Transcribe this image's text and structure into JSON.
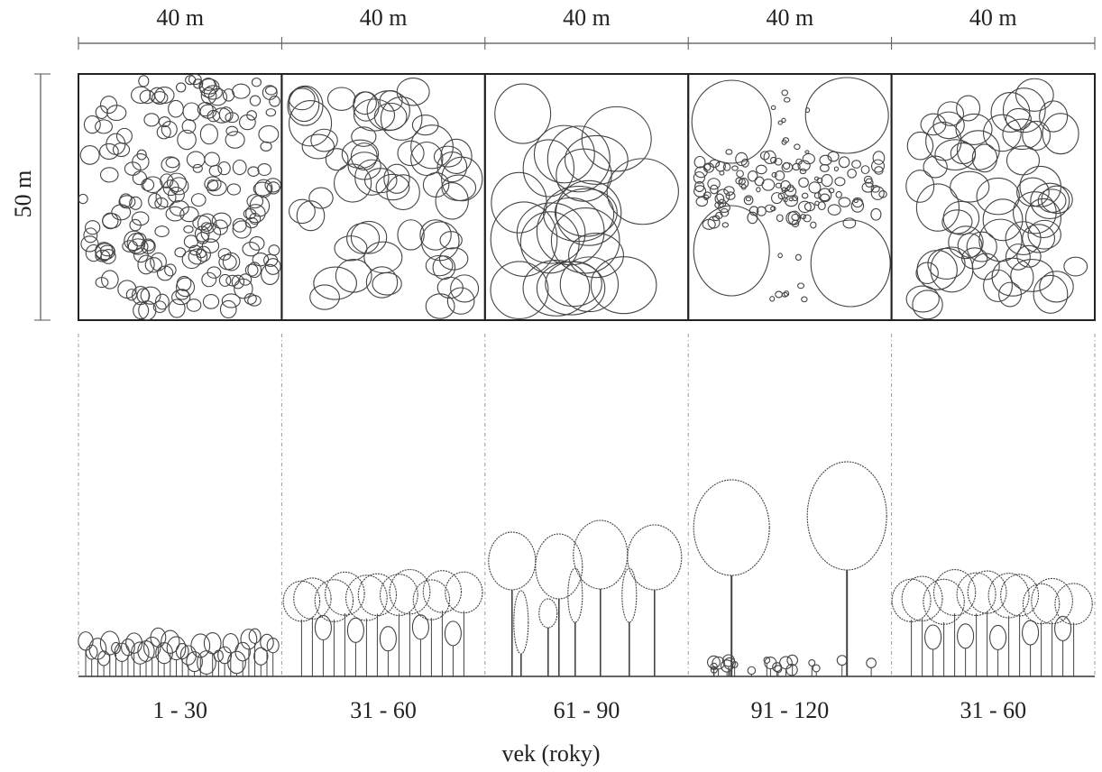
{
  "columns": [
    {
      "width_label": "40 m",
      "age_label": "1 - 30"
    },
    {
      "width_label": "40 m",
      "age_label": "31 - 60"
    },
    {
      "width_label": "40 m",
      "age_label": "61 - 90"
    },
    {
      "width_label": "40 m",
      "age_label": "91 - 120"
    },
    {
      "width_label": "40 m",
      "age_label": "31 - 60"
    }
  ],
  "height_label": "50 m",
  "axis_label": "vek (roky)"
}
